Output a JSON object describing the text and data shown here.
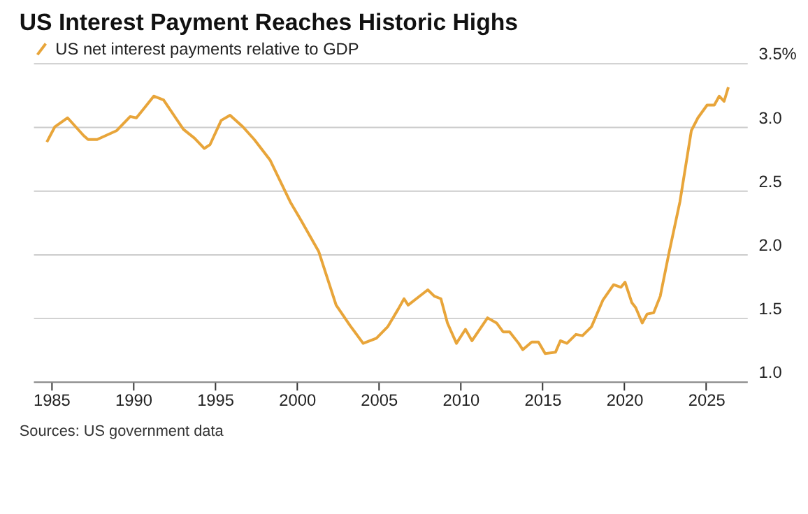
{
  "chart_data": {
    "type": "line",
    "title": "US Interest Payment Reaches Historic Highs",
    "annotations": [
      "Sources: US government data"
    ],
    "series": [
      {
        "name": "US net interest payments relative to GDP",
        "color": "#e8a53a",
        "x": [
          1984.73,
          1985.22,
          1986.0,
          1986.98,
          1987.25,
          1987.8,
          1989.0,
          1989.82,
          1990.2,
          1990.64,
          1991.26,
          1991.86,
          1993.07,
          1993.75,
          1994.35,
          1994.7,
          1995.38,
          1995.92,
          1996.7,
          1997.4,
          1998.36,
          1999.6,
          2000.24,
          2001.34,
          2002.4,
          2003.25,
          2004.05,
          2004.86,
          2005.55,
          2006.2,
          2006.55,
          2006.8,
          2007.3,
          2008.0,
          2008.4,
          2008.8,
          2009.2,
          2009.75,
          2010.3,
          2010.7,
          2011.65,
          2012.2,
          2012.6,
          2013.0,
          2013.55,
          2013.8,
          2014.35,
          2014.76,
          2015.17,
          2015.8,
          2016.1,
          2016.5,
          2017.05,
          2017.45,
          2018.0,
          2018.7,
          2019.35,
          2019.8,
          2020.05,
          2020.46,
          2020.7,
          2021.1,
          2021.4,
          2021.8,
          2022.2,
          2022.75,
          2023.4,
          2024.1,
          2024.5,
          2025.06,
          2025.5,
          2025.8,
          2026.1,
          2026.36
        ],
        "values": [
          2.88,
          3.0,
          3.07,
          2.93,
          2.9,
          2.9,
          2.97,
          3.08,
          3.07,
          3.14,
          3.24,
          3.21,
          2.98,
          2.91,
          2.83,
          2.86,
          3.05,
          3.09,
          3.0,
          2.9,
          2.74,
          2.41,
          2.27,
          2.02,
          1.6,
          1.44,
          1.3,
          1.34,
          1.43,
          1.57,
          1.65,
          1.6,
          1.65,
          1.72,
          1.67,
          1.65,
          1.46,
          1.3,
          1.41,
          1.32,
          1.5,
          1.46,
          1.39,
          1.39,
          1.3,
          1.25,
          1.31,
          1.31,
          1.22,
          1.23,
          1.32,
          1.3,
          1.37,
          1.36,
          1.43,
          1.64,
          1.76,
          1.74,
          1.78,
          1.62,
          1.58,
          1.46,
          1.53,
          1.54,
          1.67,
          2.02,
          2.41,
          2.97,
          3.07,
          3.17,
          3.17,
          3.24,
          3.2,
          3.31
        ]
      }
    ],
    "xlim": [
      1983.9,
      2027.5
    ],
    "xticks": [
      1985,
      1990,
      1995,
      2000,
      2005,
      2010,
      2015,
      2020,
      2025
    ],
    "ylim": [
      1.0,
      3.5
    ],
    "yticks": [
      {
        "value": 1,
        "label": "1.0"
      },
      1.5,
      {
        "value": 2,
        "label": "2.0"
      },
      2.5,
      {
        "value": 3,
        "label": "3.0"
      },
      {
        "value": 3.5,
        "label": "3.5%"
      }
    ],
    "grid": "y",
    "legend": "top left",
    "line_style": "solid",
    "marker": "none"
  }
}
